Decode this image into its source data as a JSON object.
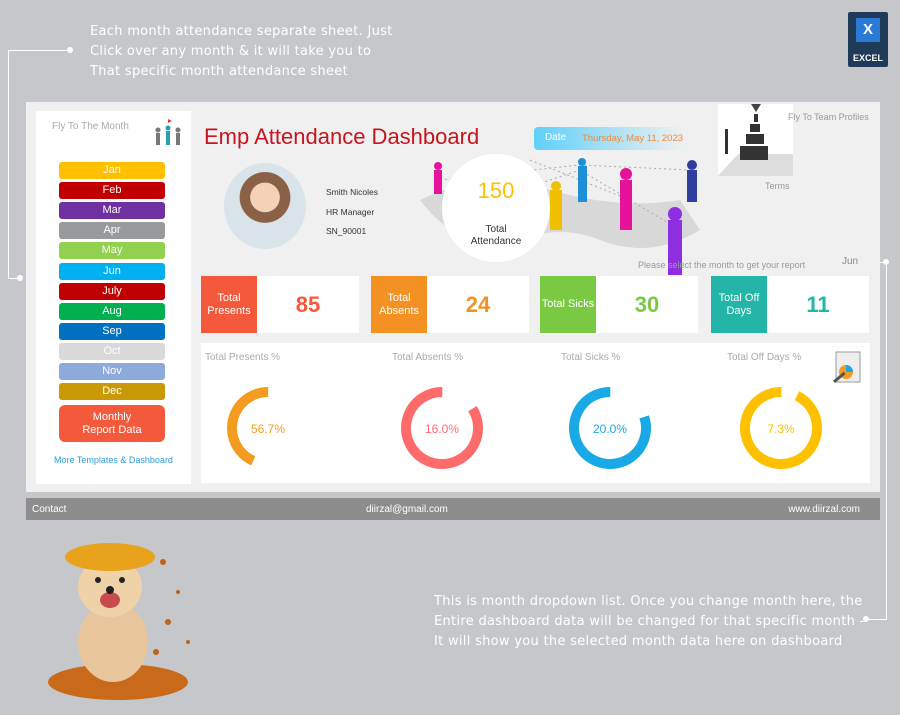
{
  "top_note": [
    "Each month attendance separate sheet. Just",
    "Click over any month & it will take you to",
    "That specific month attendance sheet"
  ],
  "excel_badge": "EXCEL",
  "sidebar": {
    "title": "Fly To The Month",
    "months": [
      {
        "label": "Jan",
        "color": "#ffc000"
      },
      {
        "label": "Feb",
        "color": "#c00000"
      },
      {
        "label": "Mar",
        "color": "#7030a0"
      },
      {
        "label": "Apr",
        "color": "#999a9c"
      },
      {
        "label": "May",
        "color": "#92d050"
      },
      {
        "label": "Jun",
        "color": "#00b0f0"
      },
      {
        "label": "July",
        "color": "#c00000"
      },
      {
        "label": "Aug",
        "color": "#00b050"
      },
      {
        "label": "Sep",
        "color": "#0070c0"
      },
      {
        "label": "Oct",
        "color": "#d9d9d9"
      },
      {
        "label": "Nov",
        "color": "#8ea9db"
      },
      {
        "label": "Dec",
        "color": "#c99a06"
      }
    ],
    "report_button": "Monthly Report Data",
    "more_link": "More Templates & Dashboard"
  },
  "header": {
    "title": "Emp Attendance Dashboard",
    "date_label": "Date",
    "date_value": "Thursday, May 11, 2023",
    "team_link": "Fly To Team Profiles",
    "terms": "Terms"
  },
  "employee": {
    "name": "Smith Nicoles",
    "role": "HR Manager",
    "id": "SN_90001"
  },
  "total": {
    "value": "150",
    "label": "Total Attendance"
  },
  "month_prompt": "Please select the month to get your report",
  "selected_month": "Jun",
  "kpis": [
    {
      "label": "Total Presents",
      "value": "85",
      "color": "#f4593b"
    },
    {
      "label": "Total Absents",
      "value": "24",
      "color": "#f39223"
    },
    {
      "label": "Total Sicks",
      "value": "30",
      "color": "#7ac943"
    },
    {
      "label": "Total Off Days",
      "value": "11",
      "color": "#22b5a8"
    }
  ],
  "donuts": [
    {
      "label": "Total Presents %",
      "value": "56.7%",
      "fraction": 0.567,
      "color": "#f39c1f"
    },
    {
      "label": "Total Absents %",
      "value": "16.0%",
      "fraction": 0.16,
      "color": "#ff6b6b"
    },
    {
      "label": "Total Sicks %",
      "value": "20.0%",
      "fraction": 0.2,
      "color": "#18a9e6"
    },
    {
      "label": "Total Off Days %",
      "value": "7.3%",
      "fraction": 0.073,
      "color": "#ffc000"
    }
  ],
  "footer": {
    "contact": "Contact",
    "email": "diirzal@gmail.com",
    "website": "www.diirzal.com"
  },
  "bottom_note": [
    "This is month dropdown list. Once you change month here, the",
    "Entire dashboard data will be changed for that specific month -",
    "It will show you the selected month data here on dashboard"
  ]
}
